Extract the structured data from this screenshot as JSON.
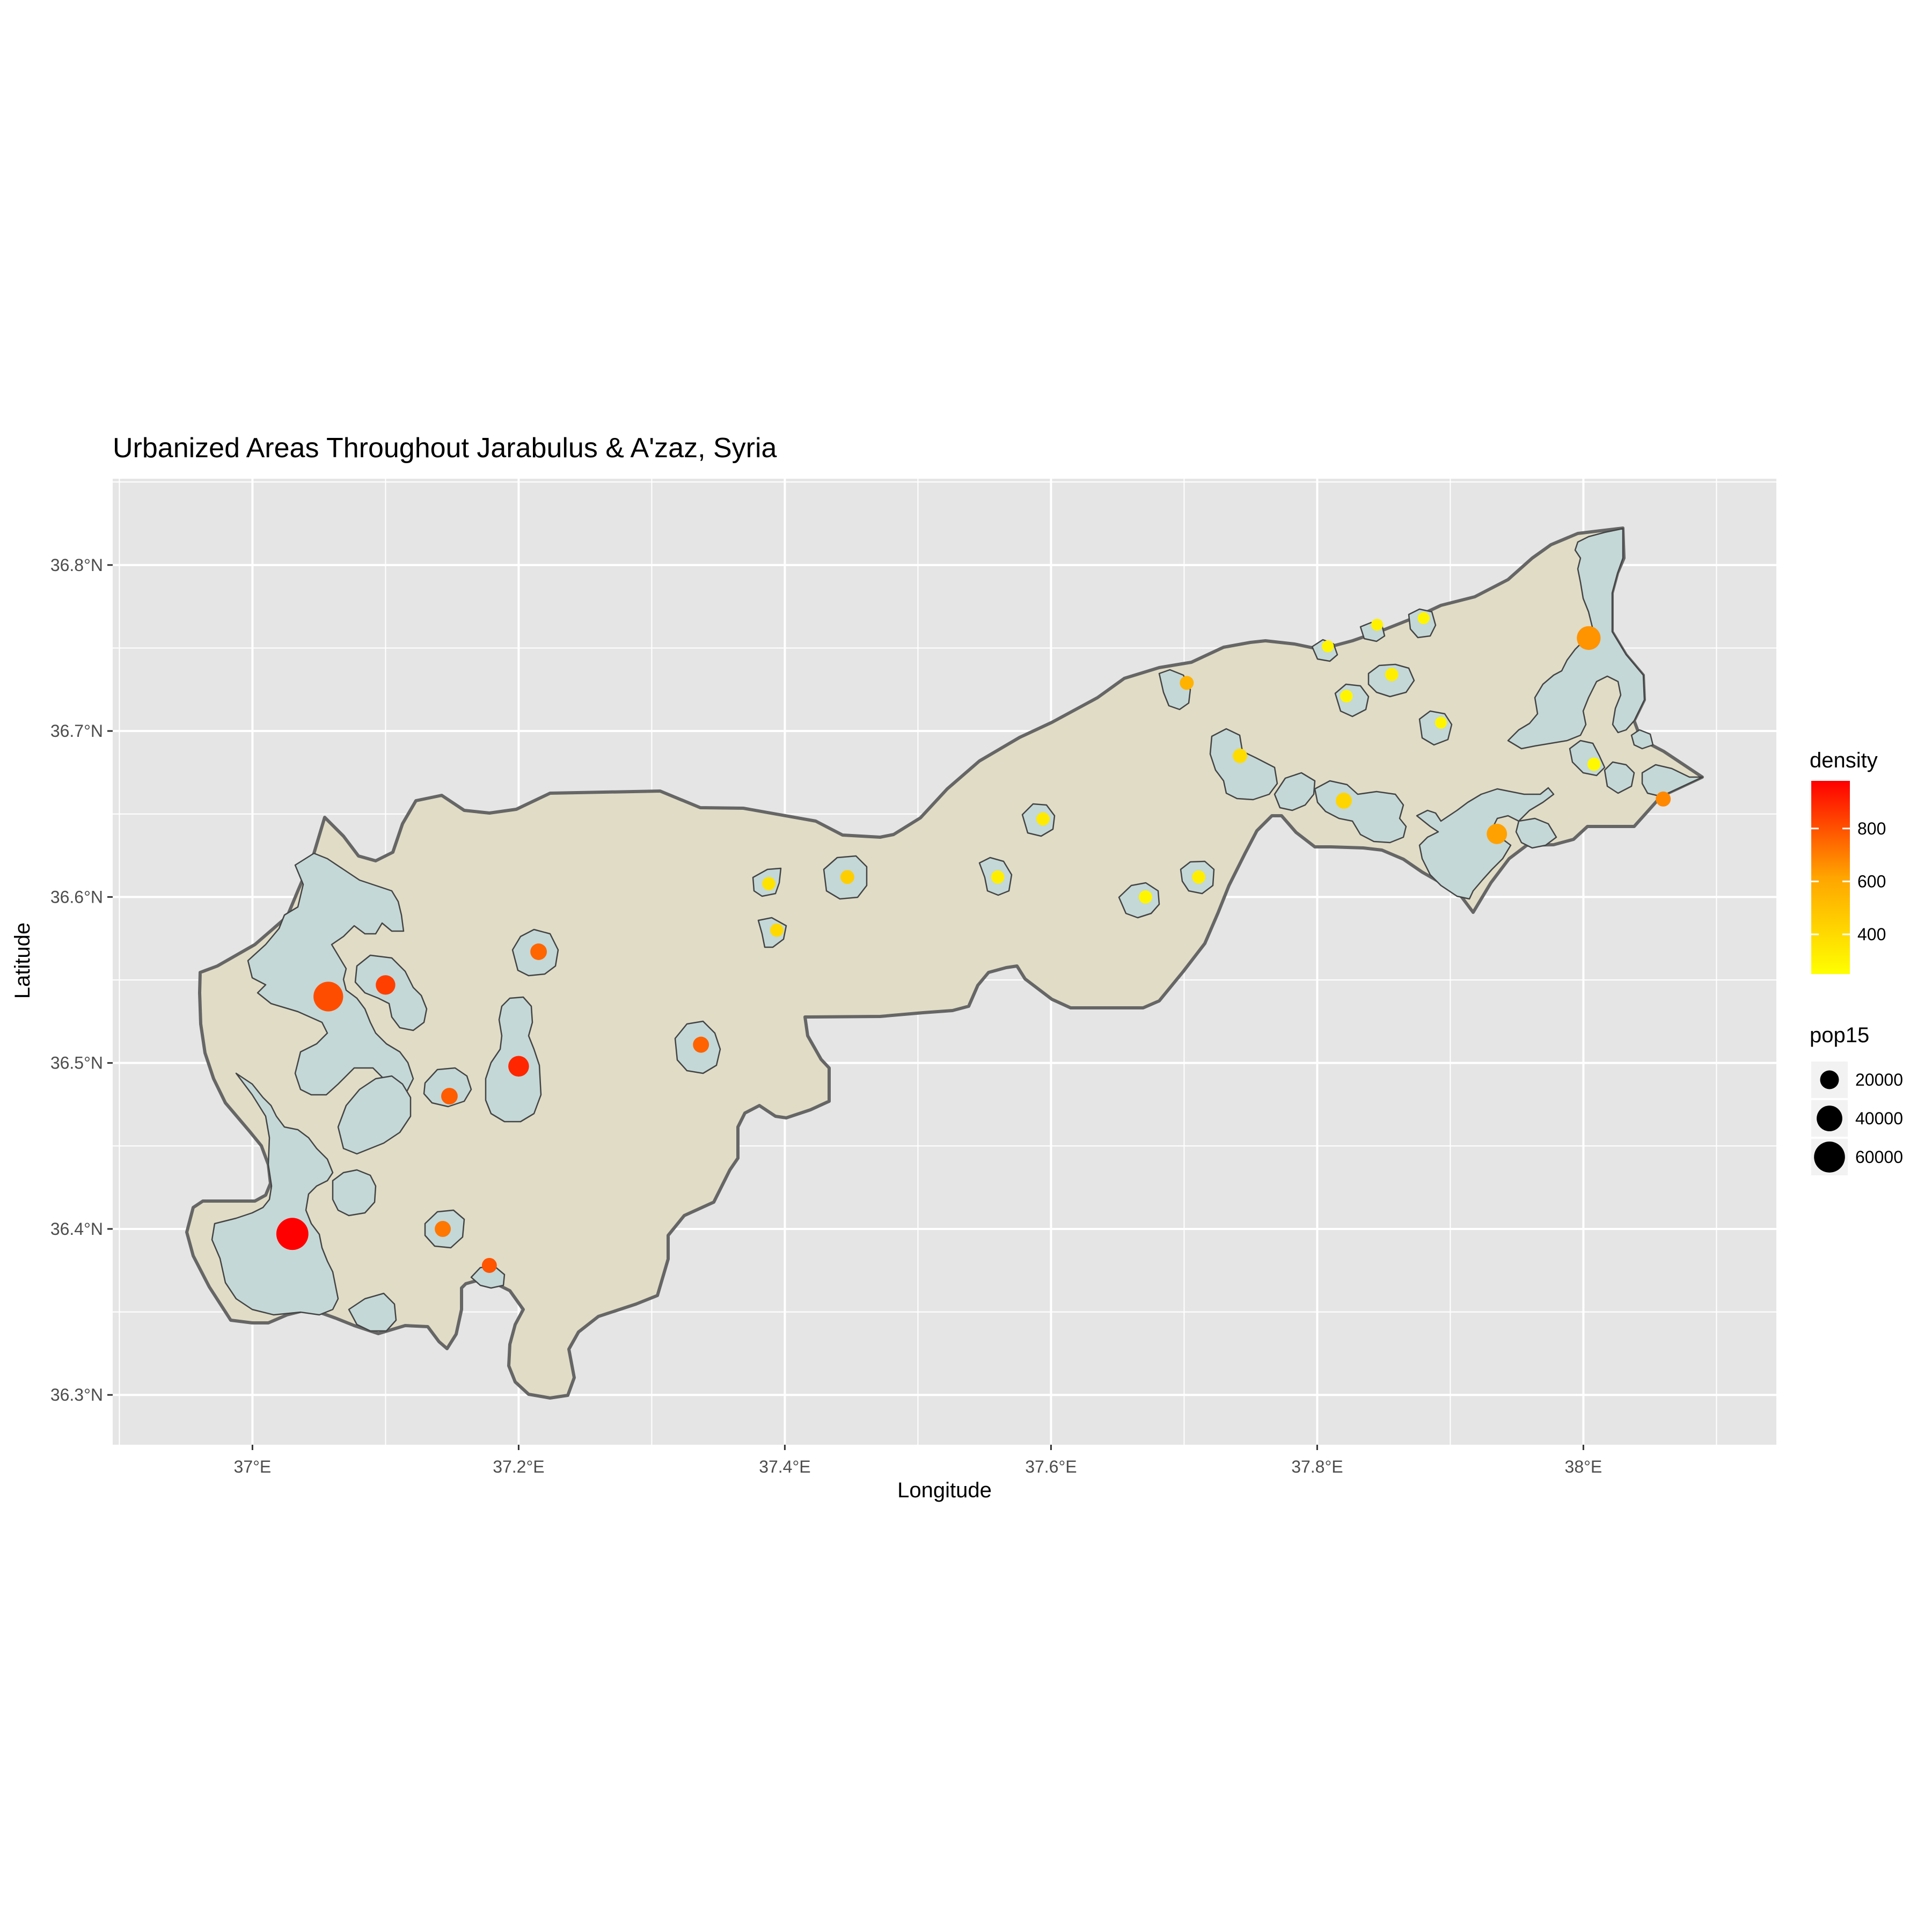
{
  "title": "Urbanized Areas Throughout Jarabulus & A'zaz, Syria",
  "axes": {
    "xlabel": "Longitude",
    "ylabel": "Latitude",
    "xticks": [
      "37°E",
      "37.2°E",
      "37.4°E",
      "37.6°E",
      "37.8°E",
      "38°E"
    ],
    "yticks": [
      "36.3°N",
      "36.4°N",
      "36.5°N",
      "36.6°N",
      "36.7°N",
      "36.8°N"
    ],
    "xlim": [
      36.895,
      38.145
    ],
    "ylim": [
      36.27,
      36.852
    ]
  },
  "legend": {
    "density": {
      "title": "density",
      "labels": [
        "400",
        "600",
        "800"
      ],
      "values": [
        400,
        600,
        800
      ],
      "range": [
        250,
        980
      ],
      "low_color": "#ffff00",
      "high_color": "#ff0000"
    },
    "pop15": {
      "title": "pop15",
      "labels": [
        "20000",
        "40000",
        "60000"
      ],
      "values": [
        20000,
        40000,
        60000
      ]
    }
  },
  "colors": {
    "panel": "#e5e5e5",
    "grid": "#ffffff",
    "district_fill": "#e0dcc6",
    "district_stroke": "#666666",
    "urban_fill": "#c4d8d7",
    "urban_stroke": "#444444"
  },
  "chart_data": {
    "type": "scatter",
    "x": [
      37.03,
      37.057,
      37.1,
      37.2,
      37.215,
      37.148,
      37.143,
      37.178,
      37.337,
      37.388,
      37.394,
      37.447,
      37.56,
      37.594,
      37.671,
      37.711,
      37.702,
      37.742,
      37.808,
      37.822,
      37.82,
      37.845,
      37.856,
      37.88,
      37.893,
      37.935,
      38.004,
      38.008,
      38.06
    ],
    "y": [
      36.397,
      36.54,
      36.547,
      36.498,
      36.567,
      36.48,
      36.4,
      36.378,
      36.511,
      36.608,
      36.58,
      36.612,
      36.612,
      36.647,
      36.6,
      36.612,
      36.729,
      36.685,
      36.751,
      36.721,
      36.658,
      36.764,
      36.734,
      36.768,
      36.705,
      36.638,
      36.756,
      36.68,
      36.659
    ],
    "density": [
      980,
      760,
      800,
      870,
      690,
      720,
      640,
      740,
      700,
      330,
      360,
      390,
      300,
      310,
      280,
      300,
      470,
      350,
      280,
      280,
      370,
      290,
      300,
      280,
      280,
      520,
      560,
      270,
      590
    ],
    "pop15": [
      65000,
      55000,
      22000,
      25000,
      15000,
      15000,
      14000,
      12000,
      14000,
      9000,
      9000,
      10000,
      9000,
      9000,
      9000,
      9000,
      10000,
      11000,
      7000,
      8000,
      14000,
      7000,
      9000,
      7000,
      7000,
      24000,
      34000,
      9000,
      12000
    ]
  }
}
